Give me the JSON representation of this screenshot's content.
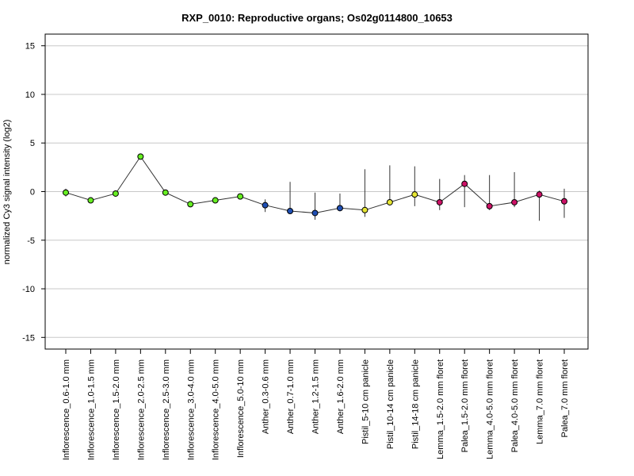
{
  "chart_data": {
    "type": "line",
    "title": "RXP_0010: Reproductive organs; Os02g0114800_10653",
    "ylabel": "normalized Cy3 signal intensity (log2)",
    "xlabel": "",
    "ylim": [
      -16.2,
      16.2
    ],
    "yticks": [
      -15,
      -10,
      -5,
      0,
      5,
      10,
      15
    ],
    "grid": true,
    "categories": [
      "Inflorescence_0.6-1.0 mm",
      "Inflorescence_1.0-1.5 mm",
      "Inflorescence_1.5-2.0 mm",
      "Inflorescence_2.0-2.5 mm",
      "Inflorescence_2.5-3.0 mm",
      "Inflorescence_3.0-4.0 mm",
      "Inflorescence_4.0-5.0 mm",
      "Inflorescence_5.0-10 mm",
      "Anther_0.3-0.6 mm",
      "Anther_0.7-1.0 mm",
      "Anther_1.2-1.5 mm",
      "Anther_1.6-2.0 mm",
      "Pistil_5-10 cm panicle",
      "Pistil_10-14 cm panicle",
      "Pistil_14-18 cm panicle",
      "Lemma_1.5-2.0 mm floret",
      "Palea_1.5-2.0 mm floret",
      "Lemma_4.0-5.0 mm floret",
      "Palea_4.0-5.0 mm floret",
      "Lemma_7.0 mm floret",
      "Palea_7.0 mm floret"
    ],
    "values": [
      -0.1,
      -0.9,
      -0.2,
      3.6,
      -0.1,
      -1.3,
      -0.9,
      -0.5,
      -1.4,
      -2.0,
      -2.2,
      -1.7,
      -1.9,
      -1.1,
      -0.3,
      -1.1,
      0.8,
      -1.5,
      -1.1,
      -0.3,
      -1.0
    ],
    "error_low": [
      -0.5,
      -1.1,
      -0.4,
      3.5,
      -0.3,
      -1.6,
      -1.2,
      -0.6,
      -2.1,
      -2.1,
      -2.9,
      -1.8,
      -2.6,
      -1.2,
      -1.5,
      -1.9,
      -1.6,
      -1.9,
      -1.6,
      -3.0,
      -2.7
    ],
    "error_high": [
      0.3,
      -0.7,
      0.0,
      3.8,
      0.1,
      -1.0,
      -0.6,
      -0.3,
      -0.8,
      1.0,
      -0.1,
      -0.2,
      2.3,
      2.7,
      2.6,
      1.3,
      1.7,
      1.7,
      2.0,
      0.1,
      0.3
    ],
    "point_colors": [
      "#66ee22",
      "#66ee22",
      "#66ee22",
      "#66ee22",
      "#66ee22",
      "#66ee22",
      "#66ee22",
      "#66ee22",
      "#1f4fb4",
      "#1f4fb4",
      "#1f4fb4",
      "#1f4fb4",
      "#e6e633",
      "#e6e633",
      "#e6e633",
      "#cc1166",
      "#cc1166",
      "#cc1166",
      "#cc1166",
      "#cc1166",
      "#cc1166"
    ],
    "line_color": "#333333",
    "grid_color": "#c8c8c8"
  }
}
